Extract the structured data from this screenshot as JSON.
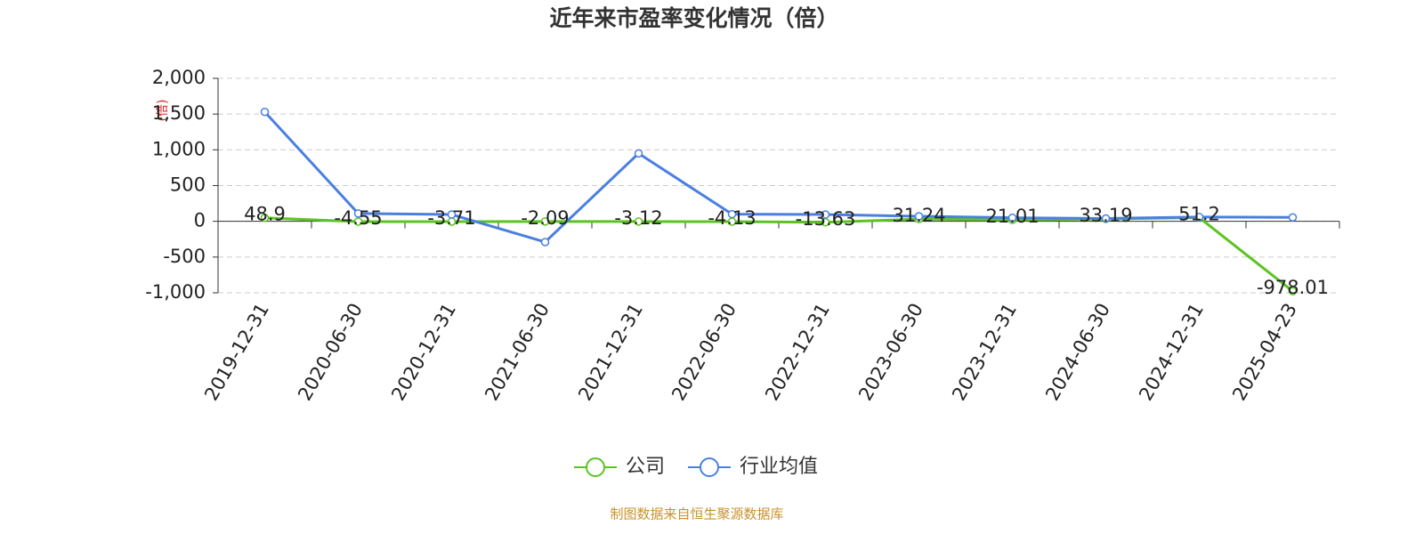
{
  "chart_data": {
    "type": "line",
    "title": "近年来市盈率变化情况（倍）",
    "y_label": "(倍)",
    "categories": [
      "2019-12-31",
      "2020-06-30",
      "2020-12-31",
      "2021-06-30",
      "2021-12-31",
      "2022-06-30",
      "2022-12-31",
      "2023-06-30",
      "2023-12-31",
      "2024-06-30",
      "2024-12-31",
      "2025-04-23"
    ],
    "series": [
      {
        "name": "公司",
        "color": "#5cc421",
        "values": [
          48.9,
          -4.55,
          -3.71,
          -2.09,
          -3.12,
          -4.13,
          -13.63,
          31.24,
          21.01,
          33.19,
          51.2,
          -978.01
        ]
      },
      {
        "name": "行业均值",
        "color": "#4a7fe0",
        "values": [
          1530,
          110,
          95,
          -290,
          950,
          100,
          95,
          70,
          50,
          40,
          60,
          55
        ]
      }
    ],
    "ylim": [
      -1000,
      2000
    ],
    "yticks": [
      {
        "value": -1000,
        "label": "-1,000"
      },
      -500,
      0,
      500,
      {
        "value": 1000,
        "label": "1,000"
      },
      {
        "value": 1500,
        "label": "1,500"
      },
      {
        "value": 2000,
        "label": "2,000"
      }
    ],
    "grid": true,
    "source": "制图数据来自恒生聚源数据库"
  }
}
